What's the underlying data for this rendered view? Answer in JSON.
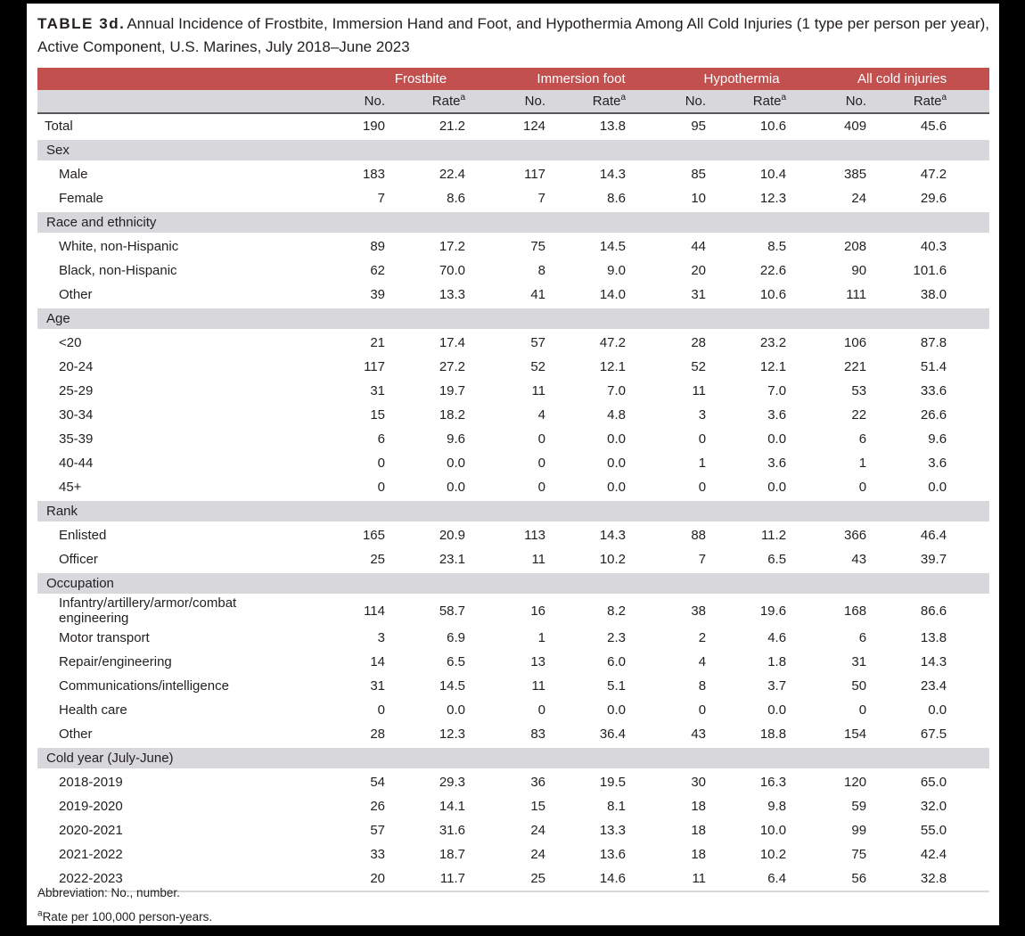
{
  "title": {
    "label": "TABLE 3d.",
    "text": "Annual Incidence of Frostbite, Immersion Hand and Foot, and Hypothermia Among All Cold Injuries (1 type per person per year), Active Component, U.S. Marines, July 2018–June 2023"
  },
  "colors": {
    "header_red": "#c1504f",
    "band_gray": "#d8d7db",
    "rule_dark": "#58585a",
    "text": "#231f20",
    "page_border": "#000000"
  },
  "table": {
    "group_headers": [
      "Frostbite",
      "Immersion foot",
      "Hypothermia",
      "All cold injuries"
    ],
    "sub_headers": {
      "no": "No.",
      "rate": "Rate",
      "rate_sup": "a"
    },
    "rows": [
      {
        "type": "data",
        "indent": 1,
        "label": "Total",
        "values": [
          "190",
          "21.2",
          "124",
          "13.8",
          "95",
          "10.6",
          "409",
          "45.6"
        ]
      },
      {
        "type": "section",
        "label": "Sex"
      },
      {
        "type": "data",
        "indent": 2,
        "label": "Male",
        "values": [
          "183",
          "22.4",
          "117",
          "14.3",
          "85",
          "10.4",
          "385",
          "47.2"
        ]
      },
      {
        "type": "data",
        "indent": 2,
        "label": "Female",
        "values": [
          "7",
          "8.6",
          "7",
          "8.6",
          "10",
          "12.3",
          "24",
          "29.6"
        ]
      },
      {
        "type": "section",
        "label": "Race and ethnicity"
      },
      {
        "type": "data",
        "indent": 2,
        "label": "White, non-Hispanic",
        "values": [
          "89",
          "17.2",
          "75",
          "14.5",
          "44",
          "8.5",
          "208",
          "40.3"
        ]
      },
      {
        "type": "data",
        "indent": 2,
        "label": "Black, non-Hispanic",
        "values": [
          "62",
          "70.0",
          "8",
          "9.0",
          "20",
          "22.6",
          "90",
          "101.6"
        ]
      },
      {
        "type": "data",
        "indent": 2,
        "label": "Other",
        "values": [
          "39",
          "13.3",
          "41",
          "14.0",
          "31",
          "10.6",
          "111",
          "38.0"
        ]
      },
      {
        "type": "section",
        "label": "Age"
      },
      {
        "type": "data",
        "indent": 2,
        "label": "<20",
        "values": [
          "21",
          "17.4",
          "57",
          "47.2",
          "28",
          "23.2",
          "106",
          "87.8"
        ]
      },
      {
        "type": "data",
        "indent": 2,
        "label": "20-24",
        "values": [
          "117",
          "27.2",
          "52",
          "12.1",
          "52",
          "12.1",
          "221",
          "51.4"
        ]
      },
      {
        "type": "data",
        "indent": 2,
        "label": "25-29",
        "values": [
          "31",
          "19.7",
          "11",
          "7.0",
          "11",
          "7.0",
          "53",
          "33.6"
        ]
      },
      {
        "type": "data",
        "indent": 2,
        "label": "30-34",
        "values": [
          "15",
          "18.2",
          "4",
          "4.8",
          "3",
          "3.6",
          "22",
          "26.6"
        ]
      },
      {
        "type": "data",
        "indent": 2,
        "label": "35-39",
        "values": [
          "6",
          "9.6",
          "0",
          "0.0",
          "0",
          "0.0",
          "6",
          "9.6"
        ]
      },
      {
        "type": "data",
        "indent": 2,
        "label": "40-44",
        "values": [
          "0",
          "0.0",
          "0",
          "0.0",
          "1",
          "3.6",
          "1",
          "3.6"
        ]
      },
      {
        "type": "data",
        "indent": 2,
        "label": "45+",
        "values": [
          "0",
          "0.0",
          "0",
          "0.0",
          "0",
          "0.0",
          "0",
          "0.0"
        ]
      },
      {
        "type": "section",
        "label": "Rank"
      },
      {
        "type": "data",
        "indent": 2,
        "label": "Enlisted",
        "values": [
          "165",
          "20.9",
          "113",
          "14.3",
          "88",
          "11.2",
          "366",
          "46.4"
        ]
      },
      {
        "type": "data",
        "indent": 2,
        "label": "Officer",
        "values": [
          "25",
          "23.1",
          "11",
          "10.2",
          "7",
          "6.5",
          "43",
          "39.7"
        ]
      },
      {
        "type": "section",
        "label": "Occupation"
      },
      {
        "type": "data",
        "indent": 2,
        "label": "Infantry/artillery/armor/combat engineering",
        "values": [
          "114",
          "58.7",
          "16",
          "8.2",
          "38",
          "19.6",
          "168",
          "86.6"
        ]
      },
      {
        "type": "data",
        "indent": 2,
        "label": "Motor transport",
        "values": [
          "3",
          "6.9",
          "1",
          "2.3",
          "2",
          "4.6",
          "6",
          "13.8"
        ]
      },
      {
        "type": "data",
        "indent": 2,
        "label": "Repair/engineering",
        "values": [
          "14",
          "6.5",
          "13",
          "6.0",
          "4",
          "1.8",
          "31",
          "14.3"
        ]
      },
      {
        "type": "data",
        "indent": 2,
        "label": "Communications/intelligence",
        "values": [
          "31",
          "14.5",
          "11",
          "5.1",
          "8",
          "3.7",
          "50",
          "23.4"
        ]
      },
      {
        "type": "data",
        "indent": 2,
        "label": "Health care",
        "values": [
          "0",
          "0.0",
          "0",
          "0.0",
          "0",
          "0.0",
          "0",
          "0.0"
        ]
      },
      {
        "type": "data",
        "indent": 2,
        "label": "Other",
        "values": [
          "28",
          "12.3",
          "83",
          "36.4",
          "43",
          "18.8",
          "154",
          "67.5"
        ]
      },
      {
        "type": "section",
        "label": "Cold year (July-June)"
      },
      {
        "type": "data",
        "indent": 2,
        "label": "2018-2019",
        "values": [
          "54",
          "29.3",
          "36",
          "19.5",
          "30",
          "16.3",
          "120",
          "65.0"
        ]
      },
      {
        "type": "data",
        "indent": 2,
        "label": "2019-2020",
        "values": [
          "26",
          "14.1",
          "15",
          "8.1",
          "18",
          "9.8",
          "59",
          "32.0"
        ]
      },
      {
        "type": "data",
        "indent": 2,
        "label": "2020-2021",
        "values": [
          "57",
          "31.6",
          "24",
          "13.3",
          "18",
          "10.0",
          "99",
          "55.0"
        ]
      },
      {
        "type": "data",
        "indent": 2,
        "label": "2021-2022",
        "values": [
          "33",
          "18.7",
          "24",
          "13.6",
          "18",
          "10.2",
          "75",
          "42.4"
        ]
      },
      {
        "type": "data",
        "indent": 2,
        "label": "2022-2023",
        "values": [
          "20",
          "11.7",
          "25",
          "14.6",
          "11",
          "6.4",
          "56",
          "32.8"
        ]
      }
    ]
  },
  "footnotes": {
    "abbreviation": "Abbreviation: No., number.",
    "rate_sup": "a",
    "rate_note": "Rate per 100,000 person-years."
  }
}
